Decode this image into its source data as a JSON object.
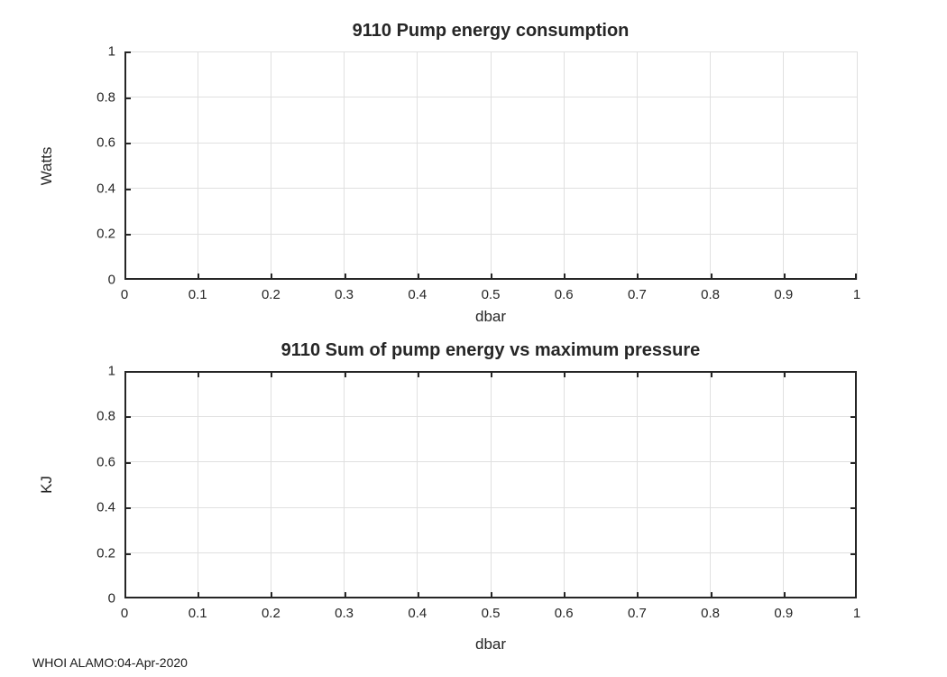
{
  "figure": {
    "background": "#ffffff",
    "footer": "WHOI ALAMO:04-Apr-2020"
  },
  "colors": {
    "axis": "#262626",
    "grid": "#e0e0e0",
    "text": "#262626",
    "background": "#ffffff"
  },
  "chart_data": [
    {
      "type": "line",
      "title": "9110 Pump energy consumption",
      "xlabel": "dbar",
      "ylabel": "Watts",
      "xlim": [
        0,
        1
      ],
      "ylim": [
        0,
        1
      ],
      "xticks": [
        0,
        0.1,
        0.2,
        0.3,
        0.4,
        0.5,
        0.6,
        0.7,
        0.8,
        0.9,
        1
      ],
      "xtick_labels": [
        "0",
        "0.1",
        "0.2",
        "0.3",
        "0.4",
        "0.5",
        "0.6",
        "0.7",
        "0.8",
        "0.9",
        "1"
      ],
      "yticks": [
        0,
        0.2,
        0.4,
        0.6,
        0.8,
        1
      ],
      "ytick_labels": [
        "0",
        "0.2",
        "0.4",
        "0.6",
        "0.8",
        "1"
      ],
      "grid": true,
      "box": false,
      "legend": null,
      "series": []
    },
    {
      "type": "line",
      "title": "9110 Sum of pump energy vs maximum pressure",
      "xlabel": "dbar",
      "ylabel": "KJ",
      "xlim": [
        0,
        1
      ],
      "ylim": [
        0,
        1
      ],
      "xticks": [
        0,
        0.1,
        0.2,
        0.3,
        0.4,
        0.5,
        0.6,
        0.7,
        0.8,
        0.9,
        1
      ],
      "xtick_labels": [
        "0",
        "0.1",
        "0.2",
        "0.3",
        "0.4",
        "0.5",
        "0.6",
        "0.7",
        "0.8",
        "0.9",
        "1"
      ],
      "yticks": [
        0,
        0.2,
        0.4,
        0.6,
        0.8,
        1
      ],
      "ytick_labels": [
        "0",
        "0.2",
        "0.4",
        "0.6",
        "0.8",
        "1"
      ],
      "grid": true,
      "box": true,
      "legend": null,
      "series": []
    }
  ]
}
